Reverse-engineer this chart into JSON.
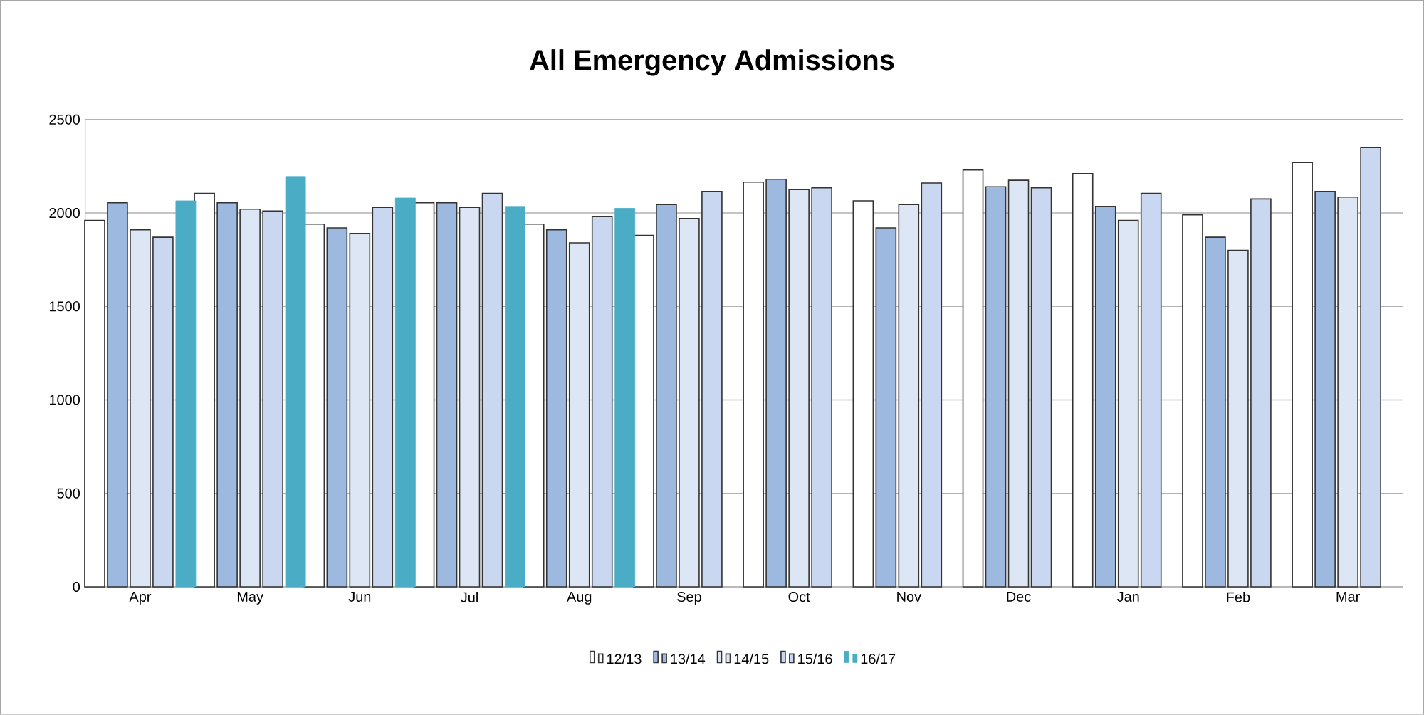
{
  "chart_data": {
    "type": "bar",
    "title": "All Emergency Admissions",
    "categories": [
      "Apr",
      "May",
      "Jun",
      "Jul",
      "Aug",
      "Sep",
      "Oct",
      "Nov",
      "Dec",
      "Jan",
      "Feb",
      "Mar"
    ],
    "series": [
      {
        "name": "12/13",
        "color": "#ffffff",
        "values": [
          1960,
          2105,
          1940,
          2055,
          1940,
          1880,
          2165,
          2065,
          2230,
          2210,
          1990,
          2270
        ]
      },
      {
        "name": "13/14",
        "color": "#9db9e0",
        "values": [
          2055,
          2055,
          1920,
          2055,
          1910,
          2045,
          2180,
          1920,
          2140,
          2035,
          1870,
          2115
        ]
      },
      {
        "name": "14/15",
        "color": "#dce6f5",
        "values": [
          1910,
          2020,
          1890,
          2030,
          1840,
          1970,
          2125,
          2045,
          2175,
          1960,
          1800,
          2085
        ]
      },
      {
        "name": "15/16",
        "color": "#c9d8f0",
        "values": [
          1870,
          2010,
          2030,
          2105,
          1980,
          2115,
          2135,
          2160,
          2135,
          2105,
          2075,
          2350
        ]
      },
      {
        "name": "16/17",
        "color": "#4bacc6",
        "values": [
          2065,
          2195,
          2080,
          2035,
          2025,
          null,
          null,
          null,
          null,
          null,
          null,
          null
        ]
      }
    ],
    "ylim": [
      0,
      2500
    ],
    "yticks": [
      0,
      500,
      1000,
      1500,
      2000,
      2500
    ],
    "grid": "y",
    "legend": "bottom"
  }
}
